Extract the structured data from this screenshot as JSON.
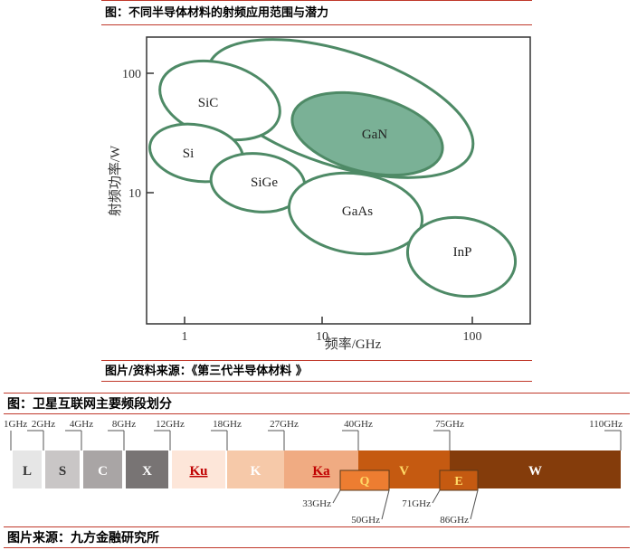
{
  "chart_data": [
    {
      "type": "bubble-region",
      "title": "图：不同半导体材料的射频应用范围与潜力",
      "xlabel": "频率/GHz",
      "ylabel": "射频功率/W",
      "xscale": "log",
      "yscale": "log",
      "xticks": [
        "1",
        "10",
        "100"
      ],
      "yticks": [
        "10",
        "100"
      ],
      "regions": [
        {
          "name": "SiC",
          "filled": false
        },
        {
          "name": "GaN",
          "filled": true,
          "color": "#6aa888"
        },
        {
          "name": "Si",
          "filled": false
        },
        {
          "name": "SiGe",
          "filled": false
        },
        {
          "name": "GaAs",
          "filled": false
        },
        {
          "name": "InP",
          "filled": false
        }
      ],
      "source": "图片/资料来源：《第三代半导体材料 》"
    },
    {
      "type": "band-bar",
      "title": "图：卫星互联网主要频段划分",
      "ticks_top": [
        "1GHz",
        "2GHz",
        "4GHz",
        "8GHz",
        "12GHz",
        "18GHz",
        "27GHz",
        "40GHz",
        "75GHz",
        "110GHz"
      ],
      "ticks_bottom": [
        "33GHz",
        "50GHz",
        "71GHz",
        "86GHz"
      ],
      "bands": [
        {
          "label": "L",
          "from": "1GHz",
          "to": "2GHz",
          "color": "#e6e6e6"
        },
        {
          "label": "S",
          "from": "2GHz",
          "to": "4GHz",
          "color": "#c9c6c6"
        },
        {
          "label": "C",
          "from": "4GHz",
          "to": "8GHz",
          "color": "#a9a5a5"
        },
        {
          "label": "X",
          "from": "8GHz",
          "to": "12GHz",
          "color": "#787474"
        },
        {
          "label": "Ku",
          "from": "12GHz",
          "to": "18GHz",
          "color": "#fde6d9"
        },
        {
          "label": "K",
          "from": "18GHz",
          "to": "27GHz",
          "color": "#f6c9a9"
        },
        {
          "label": "Ka",
          "from": "27GHz",
          "to": "40GHz",
          "color": "#f0ab82"
        },
        {
          "label": "V",
          "from": "40GHz",
          "to": "75GHz",
          "color": "#c55a11"
        },
        {
          "label": "W",
          "from": "75GHz",
          "to": "110GHz",
          "color": "#843c0b"
        },
        {
          "label": "Q",
          "from": "33GHz",
          "to": "50GHz",
          "color": "#ed7d31"
        },
        {
          "label": "E",
          "from": "71GHz",
          "to": "86GHz",
          "color": "#c55a11"
        }
      ],
      "source": "图片来源：九方金融研究所"
    }
  ]
}
